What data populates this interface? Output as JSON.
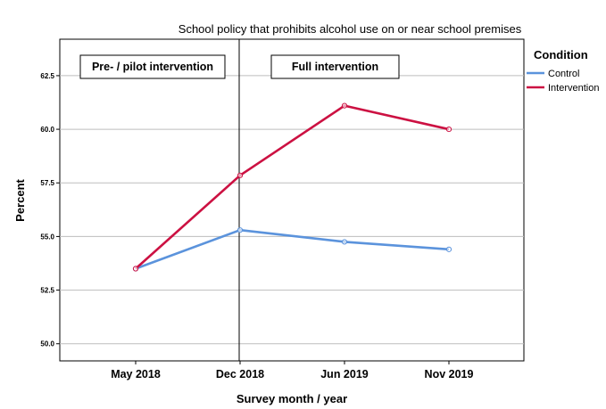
{
  "chart_data": {
    "type": "line",
    "title": "School policy that prohibits alcohol use on or near school premises",
    "xlabel": "Survey month / year",
    "ylabel": "Percent",
    "categories": [
      "May 2018",
      "Dec 2018",
      "Jun 2019",
      "Nov 2019"
    ],
    "ylim": [
      49.2,
      64.2
    ],
    "yticks": [
      50.0,
      52.5,
      55.0,
      57.5,
      60.0,
      62.5
    ],
    "ytick_labels": [
      "50.0",
      "52.5",
      "55.0",
      "57.5",
      "60.0",
      "62.5"
    ],
    "grid": "horizontal",
    "series": [
      {
        "name": "Control",
        "values": [
          53.5,
          55.3,
          54.75,
          54.4
        ],
        "color": "#5b93dc"
      },
      {
        "name": "Intervention",
        "values": [
          53.5,
          57.85,
          61.1,
          60.0
        ],
        "color": "#cc1142"
      }
    ],
    "legend": {
      "title": "Condition",
      "placement": "right-top"
    },
    "annotations": [
      {
        "text": "Pre- / pilot intervention",
        "region": "before Dec 2018"
      },
      {
        "text": "Full intervention",
        "region": "after Dec 2018"
      }
    ],
    "reference_line": {
      "category": "Dec 2018",
      "color": "#000000"
    }
  }
}
